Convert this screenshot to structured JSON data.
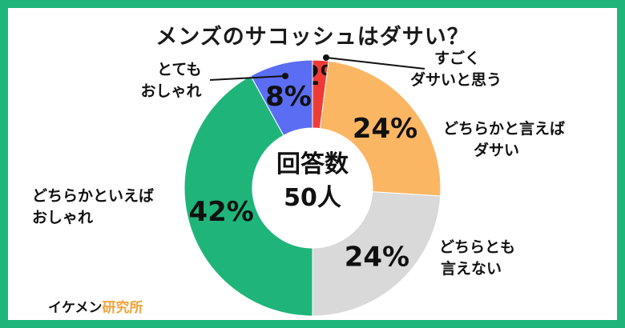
{
  "chart_data": {
    "type": "pie",
    "title": "メンズのサコッシュはダサい？",
    "center_label": "回答数",
    "center_value": "50人",
    "slices": [
      {
        "label": [
          "すごく",
          "ダサいと思う"
        ],
        "value": 2,
        "value_label": "2%",
        "color": "#ef3b36"
      },
      {
        "label": [
          "どちらかと言えば",
          "ダサい"
        ],
        "value": 24,
        "value_label": "24%",
        "color": "#fbb664"
      },
      {
        "label": [
          "どちらとも",
          "言えない"
        ],
        "value": 24,
        "value_label": "24%",
        "color": "#d9d9d9"
      },
      {
        "label": [
          "どちらかといえば",
          "おしゃれ"
        ],
        "value": 42,
        "value_label": "42%",
        "color": "#1fb57a"
      },
      {
        "label": [
          "とても",
          "おしゃれ"
        ],
        "value": 8,
        "value_label": "8%",
        "color": "#5b6df2"
      }
    ]
  },
  "brand": {
    "main": "イケメン",
    "accent": "研究所"
  },
  "colors": {
    "frame": "#1fb57a",
    "accent": "#f2a23a"
  }
}
